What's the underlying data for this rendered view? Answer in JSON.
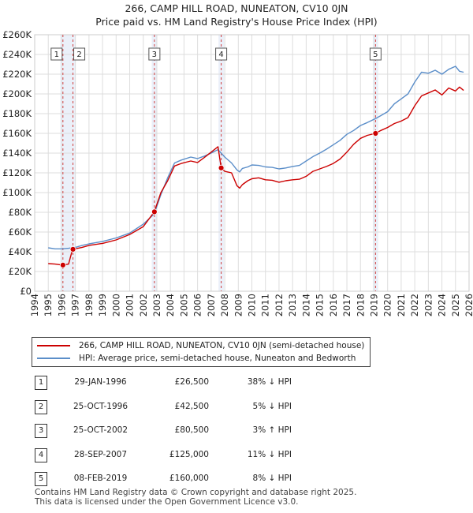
{
  "title_line1": "266, CAMP HILL ROAD, NUNEATON, CV10 0JN",
  "title_line2": "Price paid vs. HM Land Registry's House Price Index (HPI)",
  "chart_data": {
    "type": "line",
    "xlim": [
      1994,
      2026
    ],
    "ylim": [
      0,
      260000
    ],
    "yticks": [
      0,
      20000,
      40000,
      60000,
      80000,
      100000,
      120000,
      140000,
      160000,
      180000,
      200000,
      220000,
      240000,
      260000
    ],
    "ytick_labels": [
      "£0",
      "£20K",
      "£40K",
      "£60K",
      "£80K",
      "£100K",
      "£120K",
      "£140K",
      "£160K",
      "£180K",
      "£200K",
      "£220K",
      "£240K",
      "£260K"
    ],
    "xticks": [
      1994,
      1995,
      1996,
      1997,
      1998,
      1999,
      2000,
      2001,
      2002,
      2003,
      2004,
      2005,
      2006,
      2007,
      2008,
      2009,
      2010,
      2011,
      2012,
      2013,
      2014,
      2015,
      2016,
      2017,
      2018,
      2019,
      2020,
      2021,
      2022,
      2023,
      2024,
      2025,
      2026
    ],
    "series": [
      {
        "name": "266, CAMP HILL ROAD, NUNEATON, CV10 0JN (semi-detached house)",
        "color": "#cc0000",
        "x": [
          1995.0,
          1995.5,
          1996.08,
          1996.5,
          1996.79,
          1997.5,
          1998.0,
          1999.0,
          2000.0,
          2001.0,
          2002.0,
          2002.81,
          2003.3,
          2003.8,
          2004.3,
          2004.8,
          2005.5,
          2006.0,
          2006.5,
          2007.0,
          2007.5,
          2007.74,
          2008.0,
          2008.5,
          2008.9,
          2009.1,
          2009.3,
          2009.7,
          2010.0,
          2010.5,
          2011.0,
          2011.5,
          2012.0,
          2012.5,
          2013.0,
          2013.5,
          2014.0,
          2014.5,
          2015.0,
          2015.5,
          2016.0,
          2016.5,
          2017.0,
          2017.5,
          2018.0,
          2018.5,
          2019.11,
          2019.5,
          2020.0,
          2020.5,
          2021.0,
          2021.5,
          2022.0,
          2022.5,
          2023.0,
          2023.5,
          2024.0,
          2024.5,
          2025.0,
          2025.3,
          2025.6
        ],
        "values": [
          28000,
          27500,
          26500,
          27500,
          42500,
          44500,
          46500,
          48500,
          52000,
          57500,
          65500,
          80500,
          100000,
          112000,
          127000,
          129500,
          132000,
          130500,
          135500,
          141000,
          146500,
          125000,
          121500,
          120000,
          107000,
          104500,
          108000,
          112000,
          114000,
          115000,
          113000,
          112500,
          110500,
          112000,
          113000,
          113500,
          116500,
          121500,
          124000,
          126500,
          129500,
          134000,
          141000,
          149000,
          155000,
          158000,
          160000,
          163000,
          166000,
          170000,
          172500,
          176000,
          188000,
          198000,
          201000,
          204000,
          199000,
          206000,
          203000,
          207000,
          203500
        ]
      },
      {
        "name": "HPI: Average price, semi-detached house, Nuneaton and Bedworth",
        "color": "#5b8ec9",
        "x": [
          1995.0,
          1995.5,
          1996.0,
          1996.5,
          1997.0,
          1997.5,
          1998.0,
          1999.0,
          2000.0,
          2001.0,
          2002.0,
          2002.81,
          2003.3,
          2003.8,
          2004.3,
          2004.8,
          2005.5,
          2006.0,
          2006.5,
          2007.0,
          2007.5,
          2007.74,
          2008.0,
          2008.5,
          2008.9,
          2009.1,
          2009.3,
          2009.7,
          2010.0,
          2010.5,
          2011.0,
          2011.5,
          2012.0,
          2012.5,
          2013.0,
          2013.5,
          2014.0,
          2014.5,
          2015.0,
          2015.5,
          2016.0,
          2016.5,
          2017.0,
          2017.5,
          2018.0,
          2018.5,
          2019.11,
          2019.5,
          2020.0,
          2020.5,
          2021.0,
          2021.5,
          2022.0,
          2022.5,
          2023.0,
          2023.5,
          2024.0,
          2024.5,
          2025.0,
          2025.3,
          2025.6
        ],
        "values": [
          44000,
          43000,
          43000,
          43500,
          44500,
          46500,
          48000,
          50500,
          54000,
          59000,
          68000,
          78500,
          98000,
          115000,
          130000,
          133000,
          136000,
          134500,
          137000,
          140000,
          143500,
          140000,
          136000,
          130000,
          123000,
          121000,
          124500,
          126000,
          128000,
          127500,
          126000,
          125500,
          124000,
          125000,
          126500,
          127500,
          132000,
          136500,
          140000,
          144000,
          148500,
          153000,
          159000,
          163000,
          168000,
          171000,
          175000,
          178000,
          182000,
          190000,
          195000,
          200000,
          212000,
          222000,
          221000,
          224000,
          220000,
          225000,
          228000,
          223000,
          222000
        ]
      }
    ],
    "transactions": [
      {
        "num": "1",
        "date": "29-JAN-1996",
        "price": "£26,500",
        "hpi": "38% ↓ HPI",
        "x": 1996.08,
        "value": 26500
      },
      {
        "num": "2",
        "date": "25-OCT-1996",
        "price": "£42,500",
        "hpi": "5% ↓ HPI",
        "x": 1996.82,
        "value": 42500
      },
      {
        "num": "3",
        "date": "25-OCT-2002",
        "price": "£80,500",
        "hpi": "3% ↑ HPI",
        "x": 2002.82,
        "value": 80500
      },
      {
        "num": "4",
        "date": "28-SEP-2007",
        "price": "£125,000",
        "hpi": "11% ↓ HPI",
        "x": 2007.74,
        "value": 125000
      },
      {
        "num": "5",
        "date": "08-FEB-2019",
        "price": "£160,000",
        "hpi": "8% ↓ HPI",
        "x": 2019.11,
        "value": 160000
      }
    ]
  },
  "legend": {
    "property_label": "266, CAMP HILL ROAD, NUNEATON, CV10 0JN (semi-detached house)",
    "hpi_label": "HPI: Average price, semi-detached house, Nuneaton and Bedworth",
    "property_color": "#cc0000",
    "hpi_color": "#5b8ec9"
  },
  "footer": {
    "line1": "Contains HM Land Registry data © Crown copyright and database right 2025.",
    "line2": "This data is licensed under the Open Government Licence v3.0."
  }
}
